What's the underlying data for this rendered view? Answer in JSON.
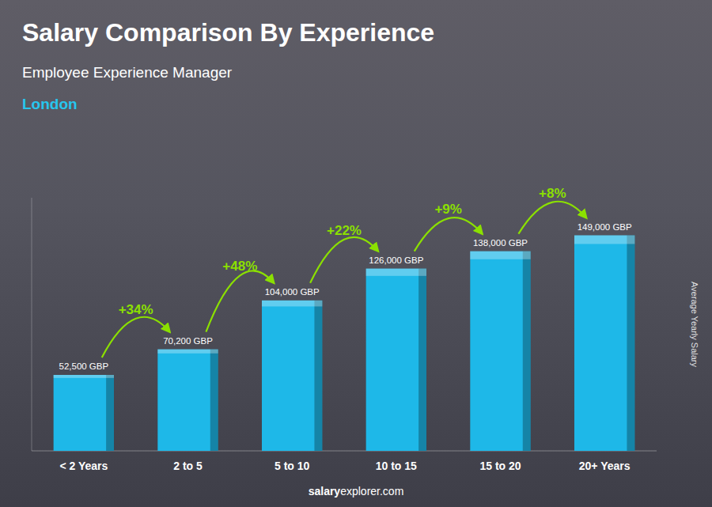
{
  "chart_data": {
    "type": "bar",
    "title": "Salary Comparison By Experience",
    "subtitle": "Employee Experience Manager",
    "city": "London",
    "ylabel": "Average Yearly Salary",
    "categories": [
      "< 2 Years",
      "2 to 5",
      "5 to 10",
      "10 to 15",
      "15 to 20",
      "20+ Years"
    ],
    "values": [
      52500,
      70200,
      104000,
      126000,
      138000,
      149000
    ],
    "value_labels": [
      "52,500 GBP",
      "70,200 GBP",
      "104,000 GBP",
      "126,000 GBP",
      "138,000 GBP",
      "149,000 GBP"
    ],
    "data_labels": true,
    "annotations": [
      "+34%",
      "+48%",
      "+22%",
      "+9%",
      "+8%"
    ],
    "footer": [
      "salary",
      "explorer.com"
    ],
    "color": "#1EB8E8",
    "ylim": [
      0,
      175000
    ],
    "tick_labels": "x",
    "grid": false
  }
}
